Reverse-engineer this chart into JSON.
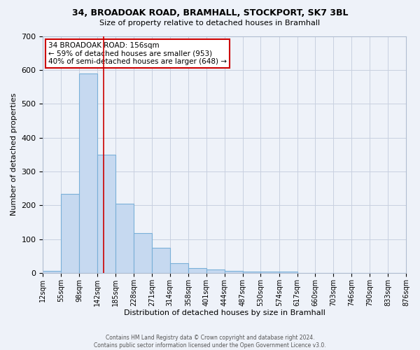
{
  "title1": "34, BROADOAK ROAD, BRAMHALL, STOCKPORT, SK7 3BL",
  "title2": "Size of property relative to detached houses in Bramhall",
  "xlabel": "Distribution of detached houses by size in Bramhall",
  "ylabel": "Number of detached properties",
  "footer1": "Contains HM Land Registry data © Crown copyright and database right 2024.",
  "footer2": "Contains public sector information licensed under the Open Government Licence v3.0.",
  "annotation_line1": "34 BROADOAK ROAD: 156sqm",
  "annotation_line2": "← 59% of detached houses are smaller (953)",
  "annotation_line3": "40% of semi-detached houses are larger (648) →",
  "property_size": 156,
  "bin_edges": [
    12,
    55,
    98,
    142,
    185,
    228,
    271,
    314,
    358,
    401,
    444,
    487,
    530,
    574,
    617,
    660,
    703,
    746,
    790,
    833,
    876
  ],
  "bin_counts": [
    7,
    234,
    590,
    350,
    205,
    118,
    74,
    28,
    15,
    10,
    7,
    5,
    5,
    5,
    0,
    0,
    0,
    0,
    0,
    0
  ],
  "bar_color": "#c6d9f0",
  "bar_edge_color": "#7ab0d8",
  "vline_color": "#cc0000",
  "background_color": "#eef2f9",
  "grid_color": "#c8d0e0",
  "annotation_box_color": "#ffffff",
  "annotation_box_edge": "#cc0000",
  "ylim": [
    0,
    700
  ],
  "yticks": [
    0,
    100,
    200,
    300,
    400,
    500,
    600,
    700
  ]
}
